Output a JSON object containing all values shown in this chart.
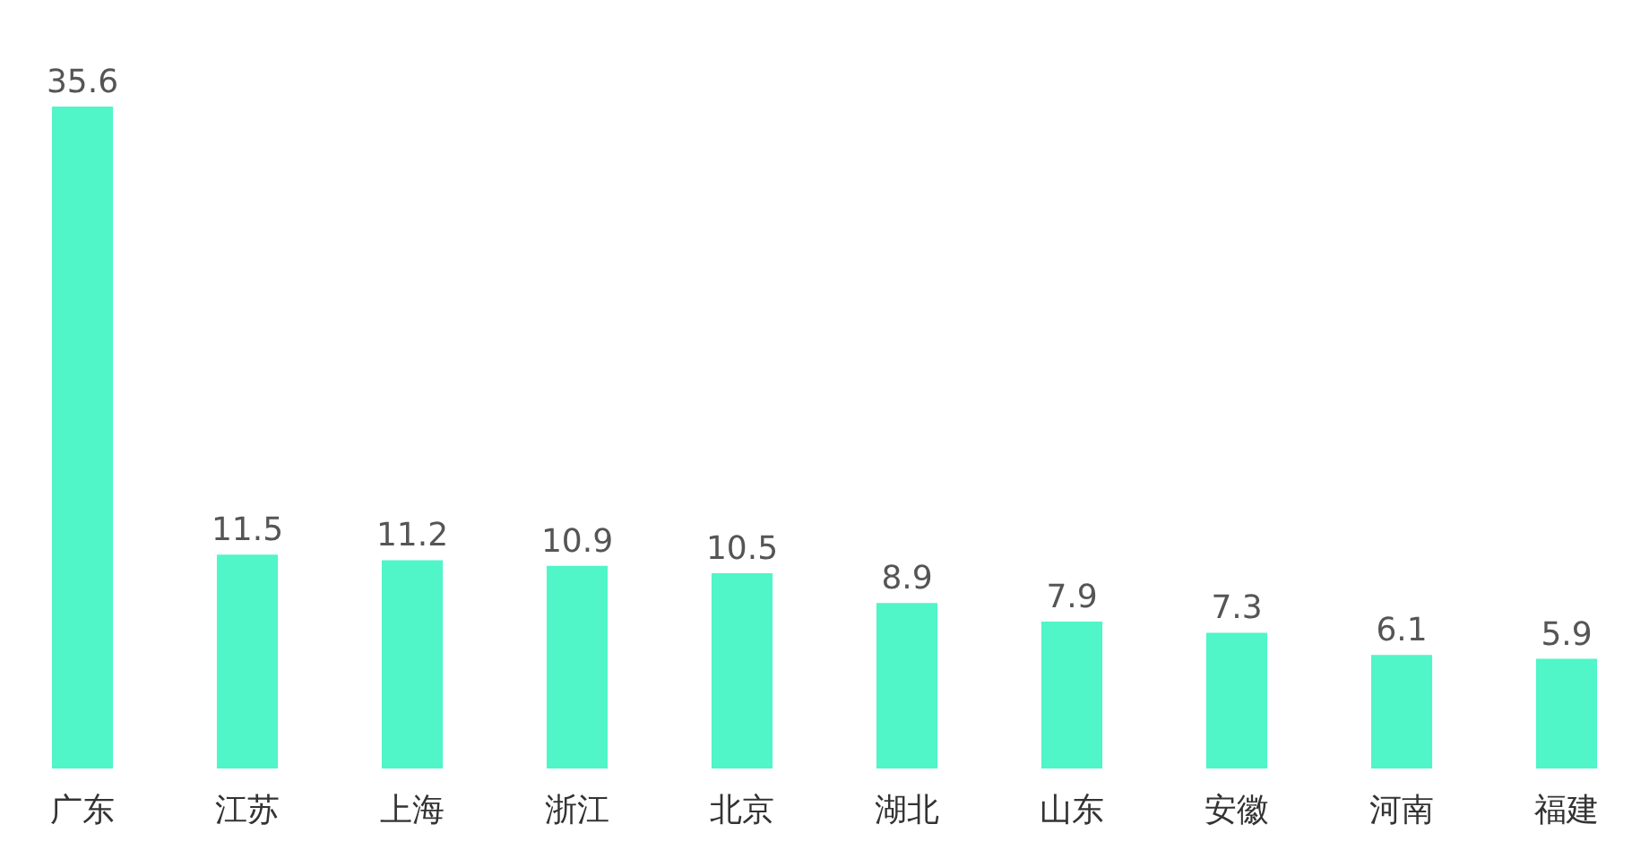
{
  "chart_data": {
    "type": "bar",
    "categories": [
      "广东",
      "江苏",
      "上海",
      "浙江",
      "北京",
      "湖北",
      "山东",
      "安徽",
      "河南",
      "福建"
    ],
    "values": [
      35.6,
      11.5,
      11.2,
      10.9,
      10.5,
      8.9,
      7.9,
      7.3,
      6.1,
      5.9
    ],
    "color": "#50f5c8",
    "data_labels": true
  }
}
